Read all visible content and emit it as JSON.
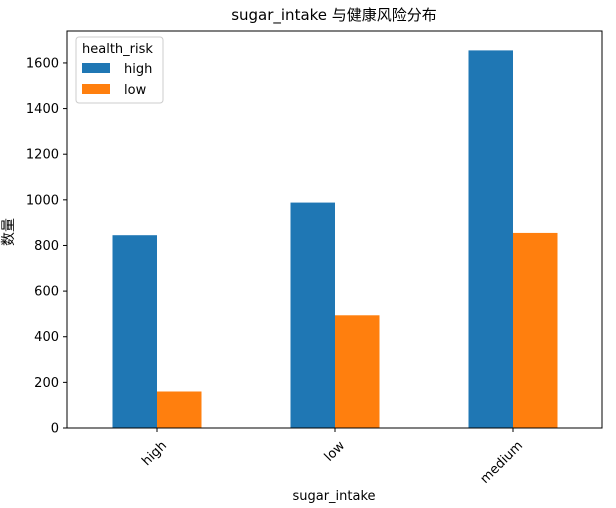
{
  "chart_data": {
    "type": "bar",
    "title": "sugar_intake 与健康风险分布",
    "xlabel": "sugar_intake",
    "ylabel": "数量",
    "categories": [
      "high",
      "low",
      "medium"
    ],
    "series": [
      {
        "name": "high",
        "color": "#1f77b4",
        "values": [
          845,
          988,
          1655
        ]
      },
      {
        "name": "low",
        "color": "#ff7f0e",
        "values": [
          160,
          494,
          855
        ]
      }
    ],
    "ylim": [
      0,
      1740
    ],
    "yticks": [
      0,
      200,
      400,
      600,
      800,
      1000,
      1200,
      1400,
      1600
    ],
    "legend": {
      "title": "health_risk",
      "placement": "top-left"
    },
    "grid": false
  }
}
